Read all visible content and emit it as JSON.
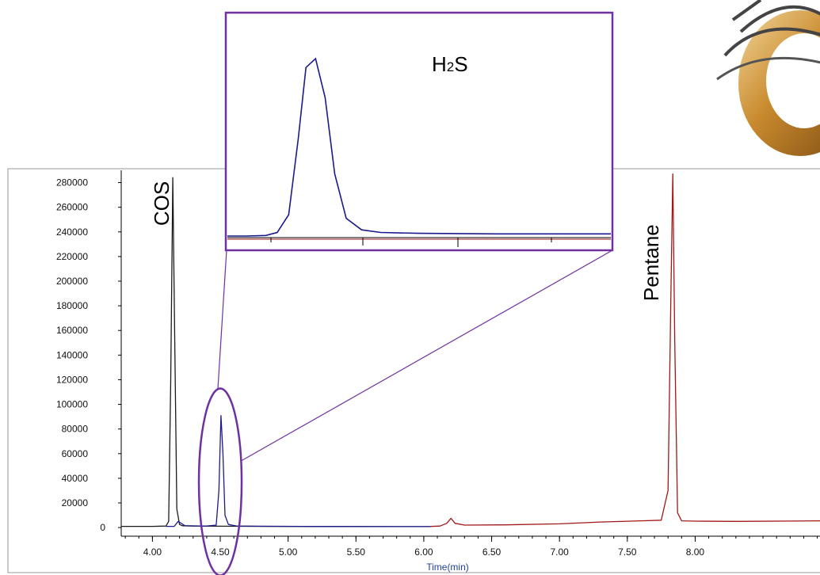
{
  "colors": {
    "background": "#ffffff",
    "axis": "#000000",
    "frame": "#9a9a9a",
    "trace_black": "#1a1a1a",
    "trace_blue": "#1a1a8c",
    "trace_red": "#a01818",
    "highlight_purple": "#7030a0",
    "axis_title": "#1f3f9a",
    "coil_gold": "#c98a2e",
    "coil_wire": "#444444"
  },
  "decoration": {
    "image": "gc-column-coil-photo"
  },
  "chart_data": {
    "type": "line",
    "title": "",
    "xlabel": "Time(min)",
    "ylabel": "",
    "xlim": [
      3.77,
      8.92
    ],
    "ylim": [
      -7000,
      290000
    ],
    "x_ticks": [
      {
        "value": 4.0,
        "label": "4.00"
      },
      {
        "value": 4.5,
        "label": "4.50"
      },
      {
        "value": 5.0,
        "label": "5.00"
      },
      {
        "value": 5.5,
        "label": "5.50"
      },
      {
        "value": 6.0,
        "label": "6.00"
      },
      {
        "value": 6.5,
        "label": "6.50"
      },
      {
        "value": 7.0,
        "label": "7.00"
      },
      {
        "value": 7.5,
        "label": "7.50"
      },
      {
        "value": 8.0,
        "label": "8.00"
      }
    ],
    "y_ticks": [
      {
        "value": 0,
        "label": "0"
      },
      {
        "value": 20000,
        "label": "20000"
      },
      {
        "value": 40000,
        "label": "40000"
      },
      {
        "value": 60000,
        "label": "60000"
      },
      {
        "value": 80000,
        "label": "80000"
      },
      {
        "value": 100000,
        "label": "100000"
      },
      {
        "value": 120000,
        "label": "120000"
      },
      {
        "value": 140000,
        "label": "140000"
      },
      {
        "value": 160000,
        "label": "160000"
      },
      {
        "value": 180000,
        "label": "180000"
      },
      {
        "value": 200000,
        "label": "200000"
      },
      {
        "value": 220000,
        "label": "220000"
      },
      {
        "value": 240000,
        "label": "240000"
      },
      {
        "value": 260000,
        "label": "260000"
      },
      {
        "value": 280000,
        "label": "280000"
      }
    ],
    "grid": false,
    "legend": "none",
    "series": [
      {
        "color_key": "trace_black",
        "x": [
          3.77,
          4.0,
          4.1,
          4.12,
          4.135,
          4.15,
          4.165,
          4.18,
          4.2,
          4.22,
          4.3,
          4.5,
          4.8,
          5.2,
          5.8,
          6.05
        ],
        "y": [
          1000,
          1000,
          1200,
          5000,
          120000,
          284000,
          150000,
          15000,
          2500,
          1500,
          1200,
          1100,
          1000,
          900,
          800,
          800
        ]
      },
      {
        "color_key": "trace_blue",
        "x": [
          4.1,
          4.16,
          4.19,
          4.24,
          4.4,
          4.47,
          4.49,
          4.505,
          4.52,
          4.535,
          4.56,
          4.62,
          4.8,
          5.2,
          5.8,
          6.05
        ],
        "y": [
          1000,
          1000,
          5000,
          1500,
          1200,
          2000,
          30000,
          91000,
          60000,
          10000,
          2500,
          1300,
          1100,
          900,
          800,
          800
        ]
      },
      {
        "color_key": "trace_red",
        "x": [
          6.05,
          6.12,
          6.17,
          6.2,
          6.23,
          6.3,
          6.6,
          7.0,
          7.3,
          7.6,
          7.75,
          7.8,
          7.82,
          7.835,
          7.85,
          7.87,
          7.9,
          8.0,
          8.3,
          8.92
        ],
        "y": [
          900,
          1200,
          3500,
          7500,
          3500,
          2000,
          2200,
          3000,
          4500,
          5500,
          6000,
          30000,
          180000,
          287000,
          150000,
          12000,
          5500,
          5200,
          5000,
          5500
        ]
      }
    ],
    "annotations": [
      {
        "text": "COS",
        "x": 4.12,
        "y": 263000,
        "rotated": true
      },
      {
        "text": "Pentane",
        "x": 7.73,
        "y": 215000,
        "rotated": true
      }
    ],
    "inset": {
      "label": "H2S",
      "label_main": "H",
      "label_sub": "2",
      "label_tail": "S",
      "trace": {
        "x": [
          0,
          0.05,
          0.1,
          0.13,
          0.16,
          0.185,
          0.205,
          0.23,
          0.255,
          0.28,
          0.31,
          0.35,
          0.4,
          0.5,
          0.7,
          1.0
        ],
        "y": [
          0,
          0,
          0.003,
          0.02,
          0.12,
          0.55,
          0.95,
          1.0,
          0.78,
          0.35,
          0.1,
          0.035,
          0.02,
          0.015,
          0.012,
          0.012
        ]
      }
    }
  }
}
